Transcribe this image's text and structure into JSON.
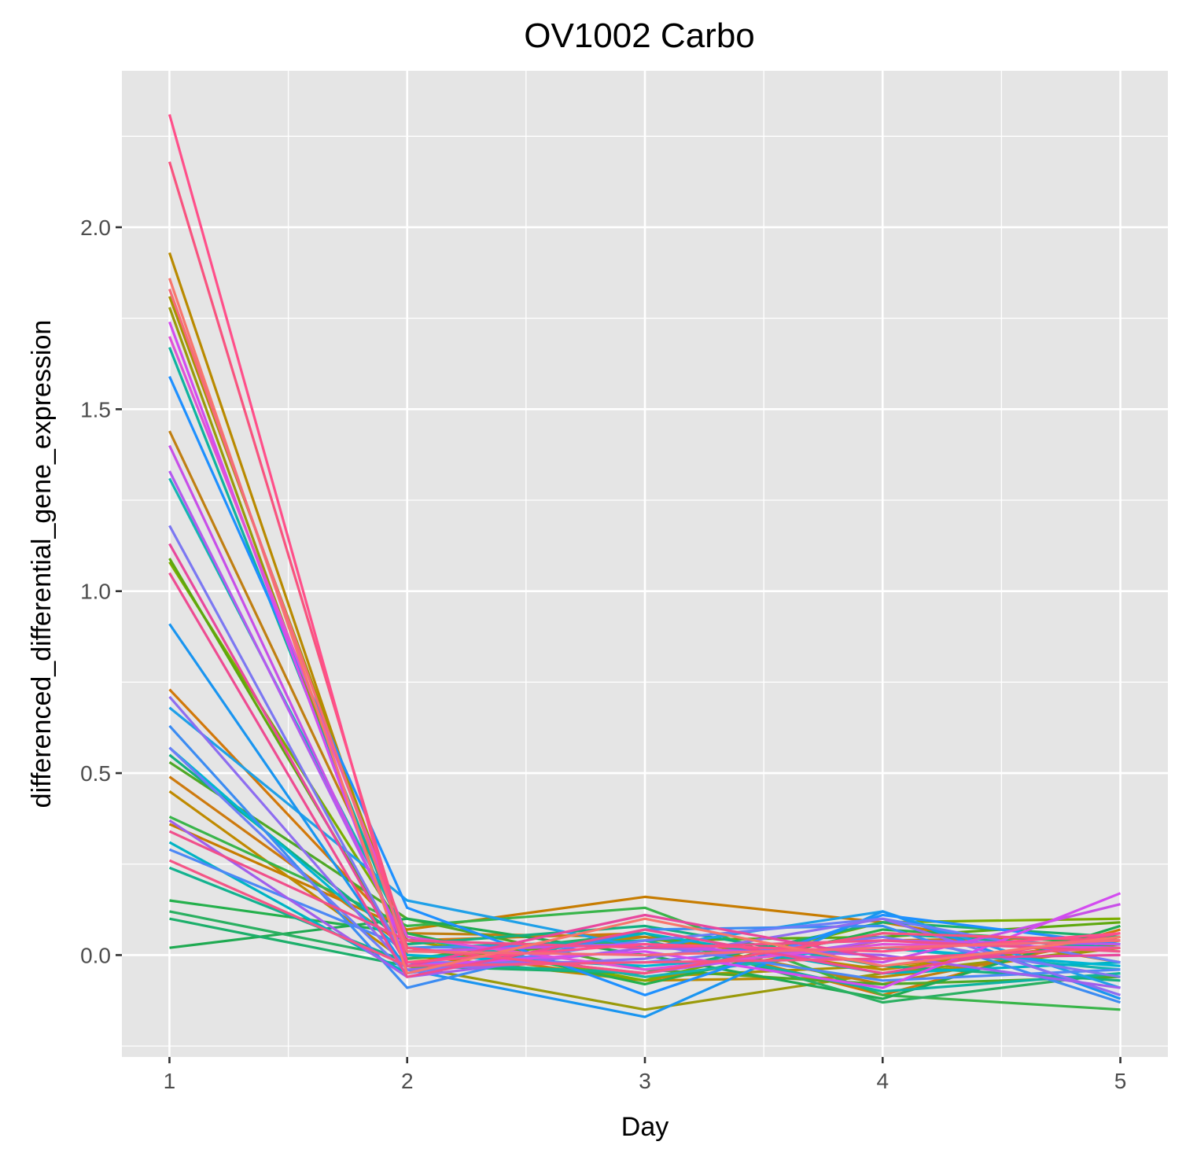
{
  "chart_data": {
    "type": "line",
    "title": "OV1002 Carbo",
    "xlabel": "Day",
    "ylabel": "differenced_differential_gene_expression",
    "x": [
      1,
      2,
      3,
      4,
      5
    ],
    "x_ticks": [
      "1",
      "2",
      "3",
      "4",
      "5"
    ],
    "y_ticks": [
      "0.0",
      "0.5",
      "1.0",
      "1.5",
      "2.0"
    ],
    "xlim": [
      0.8,
      5.2
    ],
    "ylim": [
      -0.28,
      2.43
    ],
    "grid": true,
    "legend": "none",
    "panel_background": "#E5E5E5",
    "grid_color": "#FFFFFF",
    "series": [
      {
        "values": [
          0.36,
          0.07,
          0.16,
          0.09,
          -0.02
        ],
        "color": "#C77C00"
      },
      {
        "values": [
          0.73,
          0.04,
          0.06,
          -0.11,
          0.07
        ],
        "color": "#D2780A"
      },
      {
        "values": [
          0.49,
          0.02,
          -0.07,
          0.04,
          0.05
        ],
        "color": "#CD7A0E"
      },
      {
        "values": [
          0.45,
          -0.02,
          0.05,
          -0.04,
          0.04
        ],
        "color": "#BF8A00"
      },
      {
        "values": [
          1.93,
          0.0,
          -0.07,
          -0.06,
          0.02
        ],
        "color": "#B98A00"
      },
      {
        "values": [
          1.81,
          0.04,
          -0.06,
          -0.03,
          0.03
        ],
        "color": "#A89400"
      },
      {
        "values": [
          1.78,
          -0.03,
          -0.15,
          -0.05,
          0.02
        ],
        "color": "#9A9A0A"
      },
      {
        "values": [
          1.44,
          0.06,
          0.05,
          -0.08,
          0.05
        ],
        "color": "#C07F12"
      },
      {
        "values": [
          1.08,
          0.05,
          -0.07,
          0.09,
          0.1
        ],
        "color": "#7CAE00"
      },
      {
        "values": [
          1.09,
          -0.01,
          0.04,
          0.05,
          0.09
        ],
        "color": "#5EA80E"
      },
      {
        "values": [
          0.53,
          0.1,
          -0.04,
          -0.08,
          -0.06
        ],
        "color": "#4FA826"
      },
      {
        "values": [
          0.38,
          0.08,
          0.13,
          -0.11,
          -0.15
        ],
        "color": "#39B54A"
      },
      {
        "values": [
          0.15,
          0.06,
          -0.08,
          0.07,
          0.03
        ],
        "color": "#24B04C"
      },
      {
        "values": [
          0.02,
          0.1,
          0.0,
          -0.12,
          0.08
        ],
        "color": "#1FAA52"
      },
      {
        "values": [
          0.12,
          -0.01,
          0.06,
          -0.13,
          -0.05
        ],
        "color": "#2AB061"
      },
      {
        "values": [
          0.1,
          -0.03,
          -0.05,
          0.09,
          0.05
        ],
        "color": "#1CAF6B"
      },
      {
        "values": [
          0.55,
          0.03,
          0.08,
          -0.03,
          -0.07
        ],
        "color": "#14AF7F"
      },
      {
        "values": [
          0.24,
          -0.02,
          -0.05,
          0.06,
          0.02
        ],
        "color": "#13B28F"
      },
      {
        "values": [
          1.67,
          0.02,
          0.04,
          -0.1,
          -0.05
        ],
        "color": "#0FB3A0"
      },
      {
        "values": [
          1.31,
          0.05,
          -0.06,
          0.02,
          -0.04
        ],
        "color": "#16B5B2"
      },
      {
        "values": [
          0.31,
          -0.05,
          0.06,
          -0.05,
          -0.02
        ],
        "color": "#00B4C4"
      },
      {
        "values": [
          0.57,
          0.0,
          -0.03,
          0.02,
          -0.03
        ],
        "color": "#00B6D3"
      },
      {
        "values": [
          0.68,
          0.15,
          0.02,
          0.12,
          -0.09
        ],
        "color": "#1FA0E8"
      },
      {
        "values": [
          0.91,
          -0.04,
          -0.17,
          0.12,
          -0.12
        ],
        "color": "#1A95F0"
      },
      {
        "values": [
          1.59,
          0.13,
          -0.11,
          0.11,
          0.03
        ],
        "color": "#1E90FF"
      },
      {
        "values": [
          0.63,
          -0.09,
          0.07,
          0.08,
          -0.13
        ],
        "color": "#3C8CF2"
      },
      {
        "values": [
          0.29,
          0.02,
          0.03,
          -0.07,
          -0.04
        ],
        "color": "#4D88F5"
      },
      {
        "values": [
          0.57,
          -0.05,
          0.04,
          0.1,
          -0.02
        ],
        "color": "#6B7EF8"
      },
      {
        "values": [
          1.18,
          -0.02,
          -0.02,
          0.05,
          -0.06
        ],
        "color": "#7C78F2"
      },
      {
        "values": [
          0.71,
          -0.04,
          -0.01,
          0.1,
          -0.11
        ],
        "color": "#8E6DF0"
      },
      {
        "values": [
          0.37,
          -0.06,
          0.02,
          0.0,
          -0.09
        ],
        "color": "#A05FEC"
      },
      {
        "values": [
          1.33,
          0.02,
          -0.05,
          0.04,
          0.03
        ],
        "color": "#B45AEF"
      },
      {
        "values": [
          1.4,
          0.01,
          0.03,
          -0.02,
          0.14
        ],
        "color": "#C850E8"
      },
      {
        "values": [
          1.74,
          -0.03,
          0.01,
          -0.09,
          0.17
        ],
        "color": "#D34CF0"
      },
      {
        "values": [
          1.7,
          0.05,
          -0.04,
          0.03,
          0.02
        ],
        "color": "#E052D6"
      },
      {
        "values": [
          1.13,
          -0.03,
          0.11,
          -0.01,
          0.0
        ],
        "color": "#E8489E"
      },
      {
        "values": [
          1.05,
          -0.06,
          0.07,
          -0.05,
          0.06
        ],
        "color": "#EE4C92"
      },
      {
        "values": [
          0.34,
          0.04,
          0.02,
          0.04,
          0.01
        ],
        "color": "#F0508C"
      },
      {
        "values": [
          0.26,
          -0.03,
          -0.02,
          -0.01,
          0.02
        ],
        "color": "#F45586"
      },
      {
        "values": [
          2.18,
          0.02,
          -0.05,
          0.06,
          0.04
        ],
        "color": "#F8537F"
      },
      {
        "values": [
          2.31,
          -0.02,
          0.03,
          0.01,
          0.06
        ],
        "color": "#FF4F8A"
      },
      {
        "values": [
          1.86,
          -0.05,
          0.1,
          -0.03,
          0.05
        ],
        "color": "#F8766D"
      },
      {
        "values": [
          1.83,
          0.01,
          0.0,
          0.02,
          0.04
        ],
        "color": "#F46B7A"
      }
    ]
  }
}
